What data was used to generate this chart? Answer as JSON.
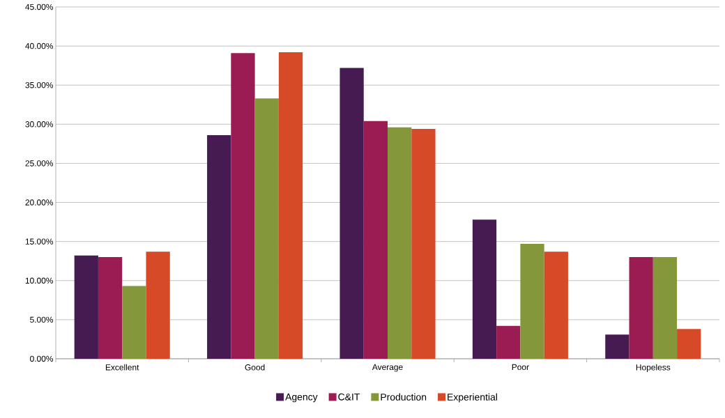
{
  "chart_data": {
    "type": "bar",
    "categories": [
      "Excellent",
      "Good",
      "Average",
      "Poor",
      "Hopeless"
    ],
    "series": [
      {
        "name": "Agency",
        "color": "#461b51",
        "values": [
          13.2,
          28.6,
          37.2,
          17.8,
          3.1
        ]
      },
      {
        "name": "C&IT",
        "color": "#9b1b53",
        "values": [
          13.0,
          39.1,
          30.4,
          4.2,
          13.0
        ]
      },
      {
        "name": "Production",
        "color": "#84973a",
        "values": [
          9.3,
          33.3,
          29.6,
          14.7,
          13.0
        ]
      },
      {
        "name": "Experiential",
        "color": "#d64a27",
        "values": [
          13.7,
          39.2,
          29.4,
          13.7,
          3.8
        ]
      }
    ],
    "ylim": [
      0,
      45
    ],
    "yticks": [
      {
        "value": 0,
        "label": "0.00%"
      },
      {
        "value": 5,
        "label": "5.00%"
      },
      {
        "value": 10,
        "label": "10.00%"
      },
      {
        "value": 15,
        "label": "15.00%"
      },
      {
        "value": 20,
        "label": "20.00%"
      },
      {
        "value": 25,
        "label": "25.00%"
      },
      {
        "value": 30,
        "label": "30.00%"
      },
      {
        "value": 35,
        "label": "35.00%"
      },
      {
        "value": 40,
        "label": "40.00%"
      },
      {
        "value": 45,
        "label": "45.00%"
      }
    ],
    "grid": "y",
    "legend": "bottom"
  }
}
